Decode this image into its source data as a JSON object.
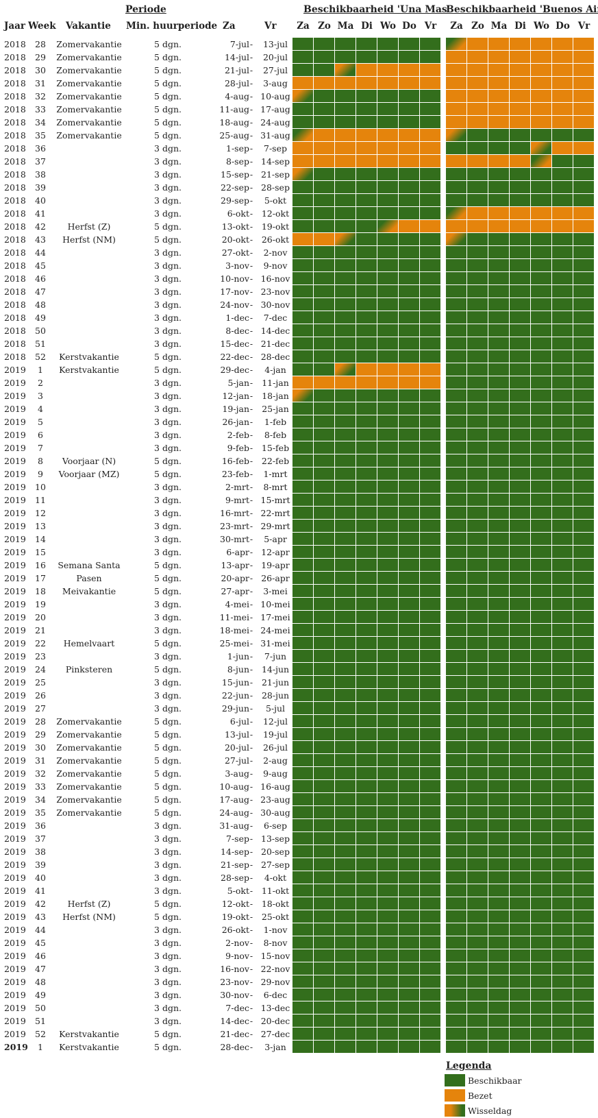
{
  "header": {
    "periode": "Periode",
    "una_mas": "Beschikbaarheid 'Una Mas'",
    "buenos_aires": "Beschikbaarheid 'Buenos Aires'"
  },
  "columns": {
    "jaar": "Jaar",
    "week": "Week",
    "vakantie": "Vakantie",
    "min": "Min. huurperiode",
    "za": "Za",
    "dash": "-",
    "vr": "Vr"
  },
  "days": [
    "Za",
    "Zo",
    "Ma",
    "Di",
    "Wo",
    "Do",
    "Vr"
  ],
  "colors": {
    "B": "#336e1c",
    "O": "#e5840c"
  },
  "legend": {
    "title": "Legenda",
    "items": [
      {
        "label": "Beschikbaar",
        "type": "B"
      },
      {
        "label": "Bezet",
        "type": "O"
      },
      {
        "label": "Wisseldag",
        "type": "W"
      }
    ]
  },
  "rows": [
    {
      "jaar": "2018",
      "week": "28",
      "vak": "Zomervakantie",
      "min": "5 dgn.",
      "za": "7-jul",
      "vr": "13-jul",
      "una": "BBBBBBB",
      "ba": "OOOOOOO",
      "una_t": [],
      "ba_t": [
        0
      ]
    },
    {
      "jaar": "2018",
      "week": "29",
      "vak": "Zomervakantie",
      "min": "5 dgn.",
      "za": "14-jul",
      "vr": "20-jul",
      "una": "BBBBBBB",
      "ba": "OOOOOOO",
      "una_t": [],
      "ba_t": []
    },
    {
      "jaar": "2018",
      "week": "30",
      "vak": "Zomervakantie",
      "min": "5 dgn.",
      "za": "21-jul",
      "vr": "27-jul",
      "una": "BBBOOOO",
      "ba": "OOOOOOO",
      "una_t": [
        2
      ],
      "ba_t": []
    },
    {
      "jaar": "2018",
      "week": "31",
      "vak": "Zomervakantie",
      "min": "5 dgn.",
      "za": "28-jul",
      "vr": "3-aug",
      "una": "OOOOOOO",
      "ba": "OOOOOOO",
      "una_t": [],
      "ba_t": []
    },
    {
      "jaar": "2018",
      "week": "32",
      "vak": "Zomervakantie",
      "min": "5 dgn.",
      "za": "4-aug",
      "vr": "10-aug",
      "una": "BBBBBBB",
      "ba": "OOOOOOO",
      "una_t": [
        0
      ],
      "ba_t": []
    },
    {
      "jaar": "2018",
      "week": "33",
      "vak": "Zomervakantie",
      "min": "5 dgn.",
      "za": "11-aug",
      "vr": "17-aug",
      "una": "BBBBBBB",
      "ba": "OOOOOOO",
      "una_t": [],
      "ba_t": []
    },
    {
      "jaar": "2018",
      "week": "34",
      "vak": "Zomervakantie",
      "min": "5 dgn.",
      "za": "18-aug",
      "vr": "24-aug",
      "una": "BBBBBBB",
      "ba": "OOOOOOO",
      "una_t": [],
      "ba_t": []
    },
    {
      "jaar": "2018",
      "week": "35",
      "vak": "Zomervakantie",
      "min": "5 dgn.",
      "za": "25-aug",
      "vr": "31-aug",
      "una": "OOOOOOO",
      "ba": "BBBBBBB",
      "una_t": [
        0
      ],
      "ba_t": [
        0
      ]
    },
    {
      "jaar": "2018",
      "week": "36",
      "vak": "",
      "min": "3 dgn.",
      "za": "1-sep",
      "vr": "7-sep",
      "una": "OOOOOOO",
      "ba": "BBBBBOO",
      "una_t": [],
      "ba_t": [
        4
      ]
    },
    {
      "jaar": "2018",
      "week": "37",
      "vak": "",
      "min": "3 dgn.",
      "za": "8-sep",
      "vr": "14-sep",
      "una": "OOOOOOO",
      "ba": "OOOOOBB",
      "una_t": [],
      "ba_t": [
        4
      ]
    },
    {
      "jaar": "2018",
      "week": "38",
      "vak": "",
      "min": "3 dgn.",
      "za": "15-sep",
      "vr": "21-sep",
      "una": "BBBBBBB",
      "ba": "BBBBBBB",
      "una_t": [
        0
      ],
      "ba_t": []
    },
    {
      "jaar": "2018",
      "week": "39",
      "vak": "",
      "min": "3 dgn.",
      "za": "22-sep",
      "vr": "28-sep",
      "una": "BBBBBBB",
      "ba": "BBBBBBB",
      "una_t": [],
      "ba_t": []
    },
    {
      "jaar": "2018",
      "week": "40",
      "vak": "",
      "min": "3 dgn.",
      "za": "29-sep",
      "vr": "5-okt",
      "una": "BBBBBBB",
      "ba": "BBBBBBB",
      "una_t": [],
      "ba_t": []
    },
    {
      "jaar": "2018",
      "week": "41",
      "vak": "",
      "min": "3 dgn.",
      "za": "6-okt",
      "vr": "12-okt",
      "una": "BBBBBBB",
      "ba": "OOOOOOO",
      "una_t": [],
      "ba_t": [
        0
      ]
    },
    {
      "jaar": "2018",
      "week": "42",
      "vak": "Herfst (Z)",
      "min": "5 dgn.",
      "za": "13-okt",
      "vr": "19-okt",
      "una": "BBBBOOO",
      "ba": "OOOOOOO",
      "una_t": [
        4
      ],
      "ba_t": []
    },
    {
      "jaar": "2018",
      "week": "43",
      "vak": "Herfst (NM)",
      "min": "5 dgn.",
      "za": "20-okt",
      "vr": "26-okt",
      "una": "OOBBBBB",
      "ba": "BBBBBBB",
      "una_t": [
        2
      ],
      "ba_t": [
        0
      ]
    },
    {
      "jaar": "2018",
      "week": "44",
      "vak": "",
      "min": "3 dgn.",
      "za": "27-okt",
      "vr": "2-nov",
      "una": "BBBBBBB",
      "ba": "BBBBBBB",
      "una_t": [],
      "ba_t": []
    },
    {
      "jaar": "2018",
      "week": "45",
      "vak": "",
      "min": "3 dgn.",
      "za": "3-nov",
      "vr": "9-nov",
      "una": "BBBBBBB",
      "ba": "BBBBBBB",
      "una_t": [],
      "ba_t": []
    },
    {
      "jaar": "2018",
      "week": "46",
      "vak": "",
      "min": "3 dgn.",
      "za": "10-nov",
      "vr": "16-nov",
      "una": "BBBBBBB",
      "ba": "BBBBBBB",
      "una_t": [],
      "ba_t": []
    },
    {
      "jaar": "2018",
      "week": "47",
      "vak": "",
      "min": "3 dgn.",
      "za": "17-nov",
      "vr": "23-nov",
      "una": "BBBBBBB",
      "ba": "BBBBBBB",
      "una_t": [],
      "ba_t": []
    },
    {
      "jaar": "2018",
      "week": "48",
      "vak": "",
      "min": "3 dgn.",
      "za": "24-nov",
      "vr": "30-nov",
      "una": "BBBBBBB",
      "ba": "BBBBBBB",
      "una_t": [],
      "ba_t": []
    },
    {
      "jaar": "2018",
      "week": "49",
      "vak": "",
      "min": "3 dgn.",
      "za": "1-dec",
      "vr": "7-dec",
      "una": "BBBBBBB",
      "ba": "BBBBBBB",
      "una_t": [],
      "ba_t": []
    },
    {
      "jaar": "2018",
      "week": "50",
      "vak": "",
      "min": "3 dgn.",
      "za": "8-dec",
      "vr": "14-dec",
      "una": "BBBBBBB",
      "ba": "BBBBBBB",
      "una_t": [],
      "ba_t": []
    },
    {
      "jaar": "2018",
      "week": "51",
      "vak": "",
      "min": "3 dgn.",
      "za": "15-dec",
      "vr": "21-dec",
      "una": "BBBBBBB",
      "ba": "BBBBBBB",
      "una_t": [],
      "ba_t": []
    },
    {
      "jaar": "2018",
      "week": "52",
      "vak": "Kerstvakantie",
      "min": "5 dgn.",
      "za": "22-dec",
      "vr": "28-dec",
      "una": "BBBBBBB",
      "ba": "BBBBBBB",
      "una_t": [],
      "ba_t": []
    },
    {
      "jaar": "2019",
      "week": "1",
      "vak": "Kerstvakantie",
      "min": "5 dgn.",
      "za": "29-dec",
      "vr": "4-jan",
      "una": "BBBOOOO",
      "ba": "BBBBBBB",
      "una_t": [
        2
      ],
      "ba_t": []
    },
    {
      "jaar": "2019",
      "week": "2",
      "vak": "",
      "min": "3 dgn.",
      "za": "5-jan",
      "vr": "11-jan",
      "una": "OOOOOOO",
      "ba": "BBBBBBB",
      "una_t": [],
      "ba_t": []
    },
    {
      "jaar": "2019",
      "week": "3",
      "vak": "",
      "min": "3 dgn.",
      "za": "12-jan",
      "vr": "18-jan",
      "una": "BBBBBBB",
      "ba": "BBBBBBB",
      "una_t": [
        0
      ],
      "ba_t": []
    },
    {
      "jaar": "2019",
      "week": "4",
      "vak": "",
      "min": "3 dgn.",
      "za": "19-jan",
      "vr": "25-jan",
      "una": "BBBBBBB",
      "ba": "BBBBBBB",
      "una_t": [],
      "ba_t": []
    },
    {
      "jaar": "2019",
      "week": "5",
      "vak": "",
      "min": "3 dgn.",
      "za": "26-jan",
      "vr": "1-feb",
      "una": "BBBBBBB",
      "ba": "BBBBBBB",
      "una_t": [],
      "ba_t": []
    },
    {
      "jaar": "2019",
      "week": "6",
      "vak": "",
      "min": "3 dgn.",
      "za": "2-feb",
      "vr": "8-feb",
      "una": "BBBBBBB",
      "ba": "BBBBBBB",
      "una_t": [],
      "ba_t": []
    },
    {
      "jaar": "2019",
      "week": "7",
      "vak": "",
      "min": "3 dgn.",
      "za": "9-feb",
      "vr": "15-feb",
      "una": "BBBBBBB",
      "ba": "BBBBBBB",
      "una_t": [],
      "ba_t": []
    },
    {
      "jaar": "2019",
      "week": "8",
      "vak": "Voorjaar (N)",
      "min": "5 dgn.",
      "za": "16-feb",
      "vr": "22-feb",
      "una": "BBBBBBB",
      "ba": "BBBBBBB",
      "una_t": [],
      "ba_t": []
    },
    {
      "jaar": "2019",
      "week": "9",
      "vak": "Voorjaar (MZ)",
      "min": "5 dgn.",
      "za": "23-feb",
      "vr": "1-mrt",
      "una": "BBBBBBB",
      "ba": "BBBBBBB",
      "una_t": [],
      "ba_t": []
    },
    {
      "jaar": "2019",
      "week": "10",
      "vak": "",
      "min": "3 dgn.",
      "za": "2-mrt",
      "vr": "8-mrt",
      "una": "BBBBBBB",
      "ba": "BBBBBBB",
      "una_t": [],
      "ba_t": []
    },
    {
      "jaar": "2019",
      "week": "11",
      "vak": "",
      "min": "3 dgn.",
      "za": "9-mrt",
      "vr": "15-mrt",
      "una": "BBBBBBB",
      "ba": "BBBBBBB",
      "una_t": [],
      "ba_t": []
    },
    {
      "jaar": "2019",
      "week": "12",
      "vak": "",
      "min": "3 dgn.",
      "za": "16-mrt",
      "vr": "22-mrt",
      "una": "BBBBBBB",
      "ba": "BBBBBBB",
      "una_t": [],
      "ba_t": []
    },
    {
      "jaar": "2019",
      "week": "13",
      "vak": "",
      "min": "3 dgn.",
      "za": "23-mrt",
      "vr": "29-mrt",
      "una": "BBBBBBB",
      "ba": "BBBBBBB",
      "una_t": [],
      "ba_t": []
    },
    {
      "jaar": "2019",
      "week": "14",
      "vak": "",
      "min": "3 dgn.",
      "za": "30-mrt",
      "vr": "5-apr",
      "una": "BBBBBBB",
      "ba": "BBBBBBB",
      "una_t": [],
      "ba_t": []
    },
    {
      "jaar": "2019",
      "week": "15",
      "vak": "",
      "min": "3 dgn.",
      "za": "6-apr",
      "vr": "12-apr",
      "una": "BBBBBBB",
      "ba": "BBBBBBB",
      "una_t": [],
      "ba_t": []
    },
    {
      "jaar": "2019",
      "week": "16",
      "vak": "Semana Santa",
      "min": "5 dgn.",
      "za": "13-apr",
      "vr": "19-apr",
      "una": "BBBBBBB",
      "ba": "BBBBBBB",
      "una_t": [],
      "ba_t": []
    },
    {
      "jaar": "2019",
      "week": "17",
      "vak": "Pasen",
      "min": "5 dgn.",
      "za": "20-apr",
      "vr": "26-apr",
      "una": "BBBBBBB",
      "ba": "BBBBBBB",
      "una_t": [],
      "ba_t": []
    },
    {
      "jaar": "2019",
      "week": "18",
      "vak": "Meivakantie",
      "min": "5 dgn.",
      "za": "27-apr",
      "vr": "3-mei",
      "una": "BBBBBBB",
      "ba": "BBBBBBB",
      "una_t": [],
      "ba_t": []
    },
    {
      "jaar": "2019",
      "week": "19",
      "vak": "",
      "min": "3 dgn.",
      "za": "4-mei",
      "vr": "10-mei",
      "una": "BBBBBBB",
      "ba": "BBBBBBB",
      "una_t": [],
      "ba_t": []
    },
    {
      "jaar": "2019",
      "week": "20",
      "vak": "",
      "min": "3 dgn.",
      "za": "11-mei",
      "vr": "17-mei",
      "una": "BBBBBBB",
      "ba": "BBBBBBB",
      "una_t": [],
      "ba_t": []
    },
    {
      "jaar": "2019",
      "week": "21",
      "vak": "",
      "min": "3 dgn.",
      "za": "18-mei",
      "vr": "24-mei",
      "una": "BBBBBBB",
      "ba": "BBBBBBB",
      "una_t": [],
      "ba_t": []
    },
    {
      "jaar": "2019",
      "week": "22",
      "vak": "Hemelvaart",
      "min": "5 dgn.",
      "za": "25-mei",
      "vr": "31-mei",
      "una": "BBBBBBB",
      "ba": "BBBBBBB",
      "una_t": [],
      "ba_t": []
    },
    {
      "jaar": "2019",
      "week": "23",
      "vak": "",
      "min": "3 dgn.",
      "za": "1-jun",
      "vr": "7-jun",
      "una": "BBBBBBB",
      "ba": "BBBBBBB",
      "una_t": [],
      "ba_t": []
    },
    {
      "jaar": "2019",
      "week": "24",
      "vak": "Pinksteren",
      "min": "5 dgn.",
      "za": "8-jun",
      "vr": "14-jun",
      "una": "BBBBBBB",
      "ba": "BBBBBBB",
      "una_t": [],
      "ba_t": []
    },
    {
      "jaar": "2019",
      "week": "25",
      "vak": "",
      "min": "3 dgn.",
      "za": "15-jun",
      "vr": "21-jun",
      "una": "BBBBBBB",
      "ba": "BBBBBBB",
      "una_t": [],
      "ba_t": []
    },
    {
      "jaar": "2019",
      "week": "26",
      "vak": "",
      "min": "3 dgn.",
      "za": "22-jun",
      "vr": "28-jun",
      "una": "BBBBBBB",
      "ba": "BBBBBBB",
      "una_t": [],
      "ba_t": []
    },
    {
      "jaar": "2019",
      "week": "27",
      "vak": "",
      "min": "3 dgn.",
      "za": "29-jun",
      "vr": "5-jul",
      "una": "BBBBBBB",
      "ba": "BBBBBBB",
      "una_t": [],
      "ba_t": []
    },
    {
      "jaar": "2019",
      "week": "28",
      "vak": "Zomervakantie",
      "min": "5 dgn.",
      "za": "6-jul",
      "vr": "12-jul",
      "una": "BBBBBBB",
      "ba": "BBBBBBB",
      "una_t": [],
      "ba_t": []
    },
    {
      "jaar": "2019",
      "week": "29",
      "vak": "Zomervakantie",
      "min": "5 dgn.",
      "za": "13-jul",
      "vr": "19-jul",
      "una": "BBBBBBB",
      "ba": "BBBBBBB",
      "una_t": [],
      "ba_t": []
    },
    {
      "jaar": "2019",
      "week": "30",
      "vak": "Zomervakantie",
      "min": "5 dgn.",
      "za": "20-jul",
      "vr": "26-jul",
      "una": "BBBBBBB",
      "ba": "BBBBBBB",
      "una_t": [],
      "ba_t": []
    },
    {
      "jaar": "2019",
      "week": "31",
      "vak": "Zomervakantie",
      "min": "5 dgn.",
      "za": "27-jul",
      "vr": "2-aug",
      "una": "BBBBBBB",
      "ba": "BBBBBBB",
      "una_t": [],
      "ba_t": []
    },
    {
      "jaar": "2019",
      "week": "32",
      "vak": "Zomervakantie",
      "min": "5 dgn.",
      "za": "3-aug",
      "vr": "9-aug",
      "una": "BBBBBBB",
      "ba": "BBBBBBB",
      "una_t": [],
      "ba_t": []
    },
    {
      "jaar": "2019",
      "week": "33",
      "vak": "Zomervakantie",
      "min": "5 dgn.",
      "za": "10-aug",
      "vr": "16-aug",
      "una": "BBBBBBB",
      "ba": "BBBBBBB",
      "una_t": [],
      "ba_t": []
    },
    {
      "jaar": "2019",
      "week": "34",
      "vak": "Zomervakantie",
      "min": "5 dgn.",
      "za": "17-aug",
      "vr": "23-aug",
      "una": "BBBBBBB",
      "ba": "BBBBBBB",
      "una_t": [],
      "ba_t": []
    },
    {
      "jaar": "2019",
      "week": "35",
      "vak": "Zomervakantie",
      "min": "5 dgn.",
      "za": "24-aug",
      "vr": "30-aug",
      "una": "BBBBBBB",
      "ba": "BBBBBBB",
      "una_t": [],
      "ba_t": []
    },
    {
      "jaar": "2019",
      "week": "36",
      "vak": "",
      "min": "3 dgn.",
      "za": "31-aug",
      "vr": "6-sep",
      "una": "BBBBBBB",
      "ba": "BBBBBBB",
      "una_t": [],
      "ba_t": []
    },
    {
      "jaar": "2019",
      "week": "37",
      "vak": "",
      "min": "3 dgn.",
      "za": "7-sep",
      "vr": "13-sep",
      "una": "BBBBBBB",
      "ba": "BBBBBBB",
      "una_t": [],
      "ba_t": []
    },
    {
      "jaar": "2019",
      "week": "38",
      "vak": "",
      "min": "3 dgn.",
      "za": "14-sep",
      "vr": "20-sep",
      "una": "BBBBBBB",
      "ba": "BBBBBBB",
      "una_t": [],
      "ba_t": []
    },
    {
      "jaar": "2019",
      "week": "39",
      "vak": "",
      "min": "3 dgn.",
      "za": "21-sep",
      "vr": "27-sep",
      "una": "BBBBBBB",
      "ba": "BBBBBBB",
      "una_t": [],
      "ba_t": []
    },
    {
      "jaar": "2019",
      "week": "40",
      "vak": "",
      "min": "3 dgn.",
      "za": "28-sep",
      "vr": "4-okt",
      "una": "BBBBBBB",
      "ba": "BBBBBBB",
      "una_t": [],
      "ba_t": []
    },
    {
      "jaar": "2019",
      "week": "41",
      "vak": "",
      "min": "3 dgn.",
      "za": "5-okt",
      "vr": "11-okt",
      "una": "BBBBBBB",
      "ba": "BBBBBBB",
      "una_t": [],
      "ba_t": []
    },
    {
      "jaar": "2019",
      "week": "42",
      "vak": "Herfst (Z)",
      "min": "5 dgn.",
      "za": "12-okt",
      "vr": "18-okt",
      "una": "BBBBBBB",
      "ba": "BBBBBBB",
      "una_t": [],
      "ba_t": []
    },
    {
      "jaar": "2019",
      "week": "43",
      "vak": "Herfst (NM)",
      "min": "5 dgn.",
      "za": "19-okt",
      "vr": "25-okt",
      "una": "BBBBBBB",
      "ba": "BBBBBBB",
      "una_t": [],
      "ba_t": []
    },
    {
      "jaar": "2019",
      "week": "44",
      "vak": "",
      "min": "3 dgn.",
      "za": "26-okt",
      "vr": "1-nov",
      "una": "BBBBBBB",
      "ba": "BBBBBBB",
      "una_t": [],
      "ba_t": []
    },
    {
      "jaar": "2019",
      "week": "45",
      "vak": "",
      "min": "3 dgn.",
      "za": "2-nov",
      "vr": "8-nov",
      "una": "BBBBBBB",
      "ba": "BBBBBBB",
      "una_t": [],
      "ba_t": []
    },
    {
      "jaar": "2019",
      "week": "46",
      "vak": "",
      "min": "3 dgn.",
      "za": "9-nov",
      "vr": "15-nov",
      "una": "BBBBBBB",
      "ba": "BBBBBBB",
      "una_t": [],
      "ba_t": []
    },
    {
      "jaar": "2019",
      "week": "47",
      "vak": "",
      "min": "3 dgn.",
      "za": "16-nov",
      "vr": "22-nov",
      "una": "BBBBBBB",
      "ba": "BBBBBBB",
      "una_t": [],
      "ba_t": []
    },
    {
      "jaar": "2019",
      "week": "48",
      "vak": "",
      "min": "3 dgn.",
      "za": "23-nov",
      "vr": "29-nov",
      "una": "BBBBBBB",
      "ba": "BBBBBBB",
      "una_t": [],
      "ba_t": []
    },
    {
      "jaar": "2019",
      "week": "49",
      "vak": "",
      "min": "3 dgn.",
      "za": "30-nov",
      "vr": "6-dec",
      "una": "BBBBBBB",
      "ba": "BBBBBBB",
      "una_t": [],
      "ba_t": []
    },
    {
      "jaar": "2019",
      "week": "50",
      "vak": "",
      "min": "3 dgn.",
      "za": "7-dec",
      "vr": "13-dec",
      "una": "BBBBBBB",
      "ba": "BBBBBBB",
      "una_t": [],
      "ba_t": []
    },
    {
      "jaar": "2019",
      "week": "51",
      "vak": "",
      "min": "3 dgn.",
      "za": "14-dec",
      "vr": "20-dec",
      "una": "BBBBBBB",
      "ba": "BBBBBBB",
      "una_t": [],
      "ba_t": []
    },
    {
      "jaar": "2019",
      "week": "52",
      "vak": "Kerstvakantie",
      "min": "5 dgn.",
      "za": "21-dec",
      "vr": "27-dec",
      "una": "BBBBBBB",
      "ba": "BBBBBBB",
      "una_t": [],
      "ba_t": []
    },
    {
      "jaar": "2019",
      "week": "1",
      "vak": "Kerstvakantie",
      "min": "5 dgn.",
      "za": "28-dec",
      "vr": "3-jan",
      "una": "BBBBBBB",
      "ba": "BBBBBBB",
      "una_t": [],
      "ba_t": [],
      "bold": true
    }
  ]
}
